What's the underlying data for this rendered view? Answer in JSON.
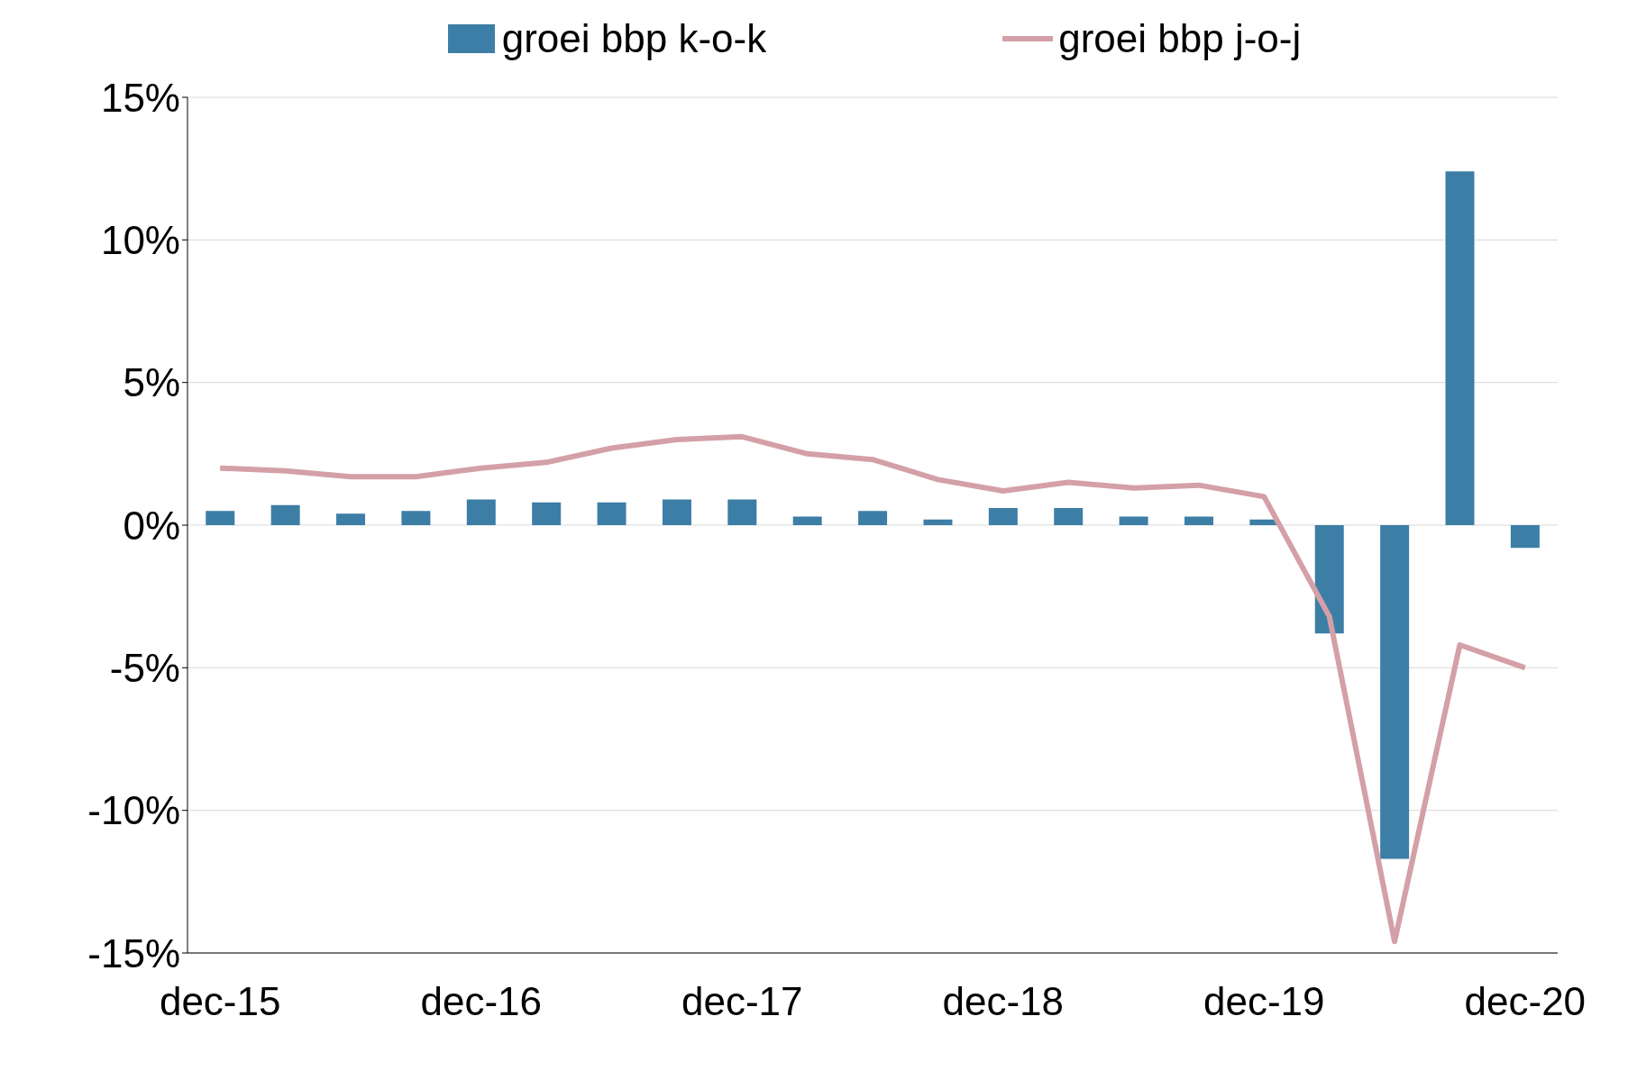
{
  "chart_data": {
    "type": "bar",
    "categories": [
      "dec-15",
      null,
      null,
      null,
      "dec-16",
      null,
      null,
      null,
      "dec-17",
      null,
      null,
      null,
      "dec-18",
      null,
      null,
      null,
      "dec-19",
      null,
      null,
      null,
      "dec-20"
    ],
    "series": [
      {
        "name": "groei bbp k-o-k",
        "color": "#3d7ea6",
        "values": [
          0.5,
          0.7,
          0.4,
          0.5,
          0.9,
          0.8,
          0.8,
          0.9,
          0.9,
          0.3,
          0.5,
          0.2,
          0.6,
          0.6,
          0.3,
          0.3,
          0.2,
          -3.8,
          -11.7,
          12.4,
          -0.8
        ]
      },
      {
        "name": "groei bbp j-o-j",
        "type": "line",
        "color": "#d4a0a7",
        "values": [
          2.0,
          1.9,
          1.7,
          1.7,
          2.0,
          2.2,
          2.7,
          3.0,
          3.1,
          2.5,
          2.3,
          1.6,
          1.2,
          1.5,
          1.3,
          1.4,
          1.0,
          -3.2,
          -14.6,
          -4.2,
          -5.0
        ]
      }
    ],
    "ylim": [
      -15,
      15
    ],
    "yticks": [
      {
        "value": -15,
        "label": "-15%"
      },
      {
        "value": -10,
        "label": "-10%"
      },
      {
        "value": -5,
        "label": "-5%"
      },
      {
        "value": 0,
        "label": "0%"
      },
      {
        "value": 5,
        "label": "5%"
      },
      {
        "value": 10,
        "label": "10%"
      },
      {
        "value": 15,
        "label": "15%"
      }
    ],
    "grid": "y",
    "legend": "top",
    "marker": "none",
    "line_style": "solid"
  }
}
